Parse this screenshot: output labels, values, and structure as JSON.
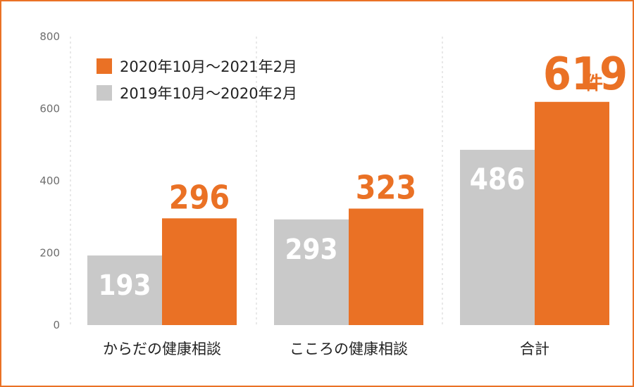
{
  "chart_data": {
    "type": "bar",
    "categories": [
      "からだの健康相談",
      "こころの健康相談",
      "合計"
    ],
    "series": [
      {
        "name": "2019年10月～2020年2月",
        "values": [
          193,
          293,
          486
        ],
        "color": "#c9c9c9"
      },
      {
        "name": "2020年10月～2021年2月",
        "values": [
          296,
          323,
          619
        ],
        "color": "#ea7125"
      }
    ],
    "y_ticks": [
      "0",
      "200",
      "400",
      "600",
      "800"
    ],
    "ylim": [
      0,
      800
    ],
    "grid": "vertical-dashed-separators",
    "legend": {
      "placement": "top-left",
      "entries": [
        "2020年10月～2021年2月",
        "2019年10月～2020年2月"
      ]
    },
    "data_labels": {
      "previous": [
        "193",
        "293",
        "486"
      ],
      "current": [
        "296",
        "323",
        "619"
      ]
    },
    "unit_label": "件",
    "colors": {
      "current": "#ea7125",
      "previous": "#c9c9c9",
      "label_on_gray": "#ffffff",
      "label_current": "#ea7125"
    }
  }
}
